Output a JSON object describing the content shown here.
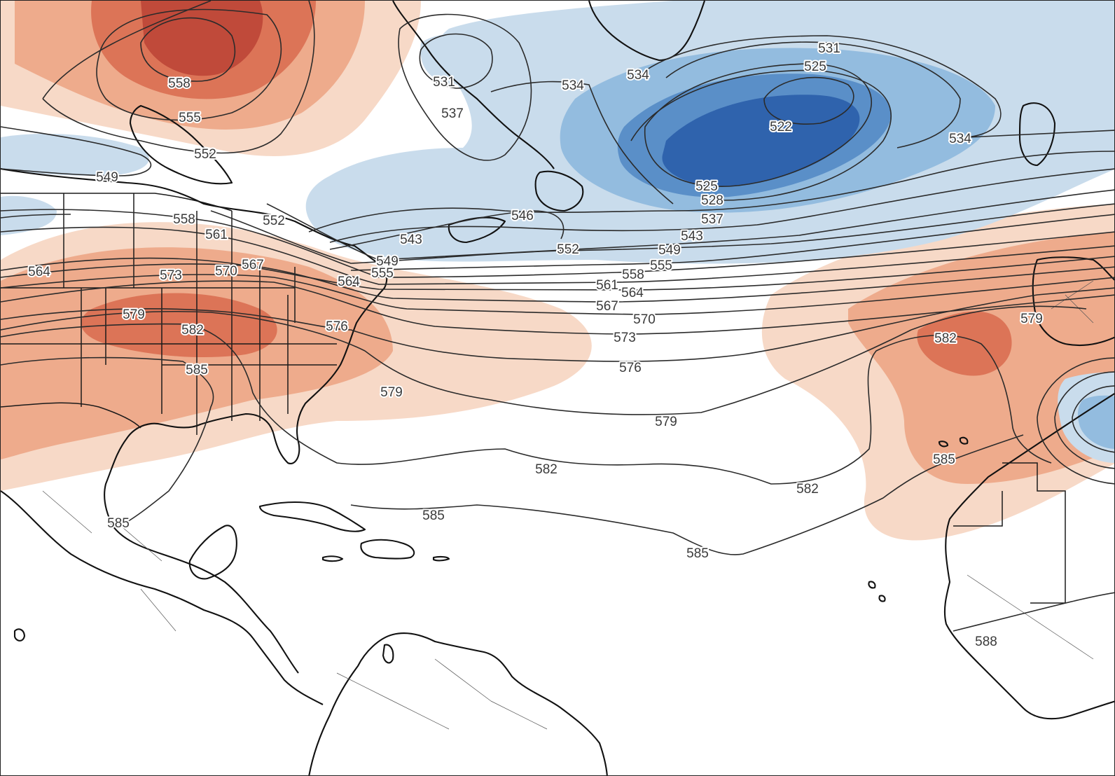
{
  "map": {
    "colors": {
      "warm_light": "#f7d9c7",
      "warm_mid": "#eeab8c",
      "warm_strong": "#dc7457",
      "warm_deep": "#c04a3a",
      "cool_light": "#c9dcec",
      "cool_mid": "#93bcdf",
      "cool_strong": "#5a8fc8",
      "cool_deep": "#2f63ad",
      "contour": "#2b2b2b",
      "coast": "#111111",
      "label": "#3a3a3a"
    },
    "contour_labels": [
      "558",
      "555",
      "552",
      "549",
      "531",
      "537",
      "534",
      "534",
      "531",
      "525",
      "522",
      "534",
      "525",
      "528",
      "537",
      "543",
      "549",
      "555",
      "546",
      "552",
      "552",
      "558",
      "561",
      "567",
      "570",
      "573",
      "564",
      "549",
      "555",
      "564",
      "543",
      "558",
      "561",
      "564",
      "567",
      "570",
      "573",
      "576",
      "579",
      "582",
      "576",
      "585",
      "579",
      "579",
      "582",
      "582",
      "585",
      "585",
      "585",
      "579",
      "582",
      "585",
      "588"
    ]
  }
}
